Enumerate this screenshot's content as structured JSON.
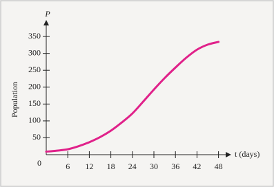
{
  "chart_data": {
    "type": "line",
    "y_axis_symbol": "P",
    "x_axis_label": "t (days)",
    "y_axis_label": "Population",
    "x": [
      0,
      3,
      6,
      9,
      12,
      15,
      18,
      21,
      24,
      27,
      30,
      33,
      36,
      39,
      42,
      45,
      48
    ],
    "series": [
      {
        "color": "#e0218a",
        "values": [
          9,
          12,
          16,
          25,
          37,
          52,
          71,
          95,
          122,
          157,
          193,
          227,
          258,
          287,
          311,
          326,
          334
        ]
      }
    ],
    "xlim": [
      0,
      51
    ],
    "ylim": [
      0,
      397
    ],
    "xticks": [
      0,
      6,
      12,
      18,
      24,
      30,
      36,
      42,
      48
    ],
    "yticks": [
      50,
      100,
      150,
      200,
      250,
      300,
      350
    ]
  }
}
